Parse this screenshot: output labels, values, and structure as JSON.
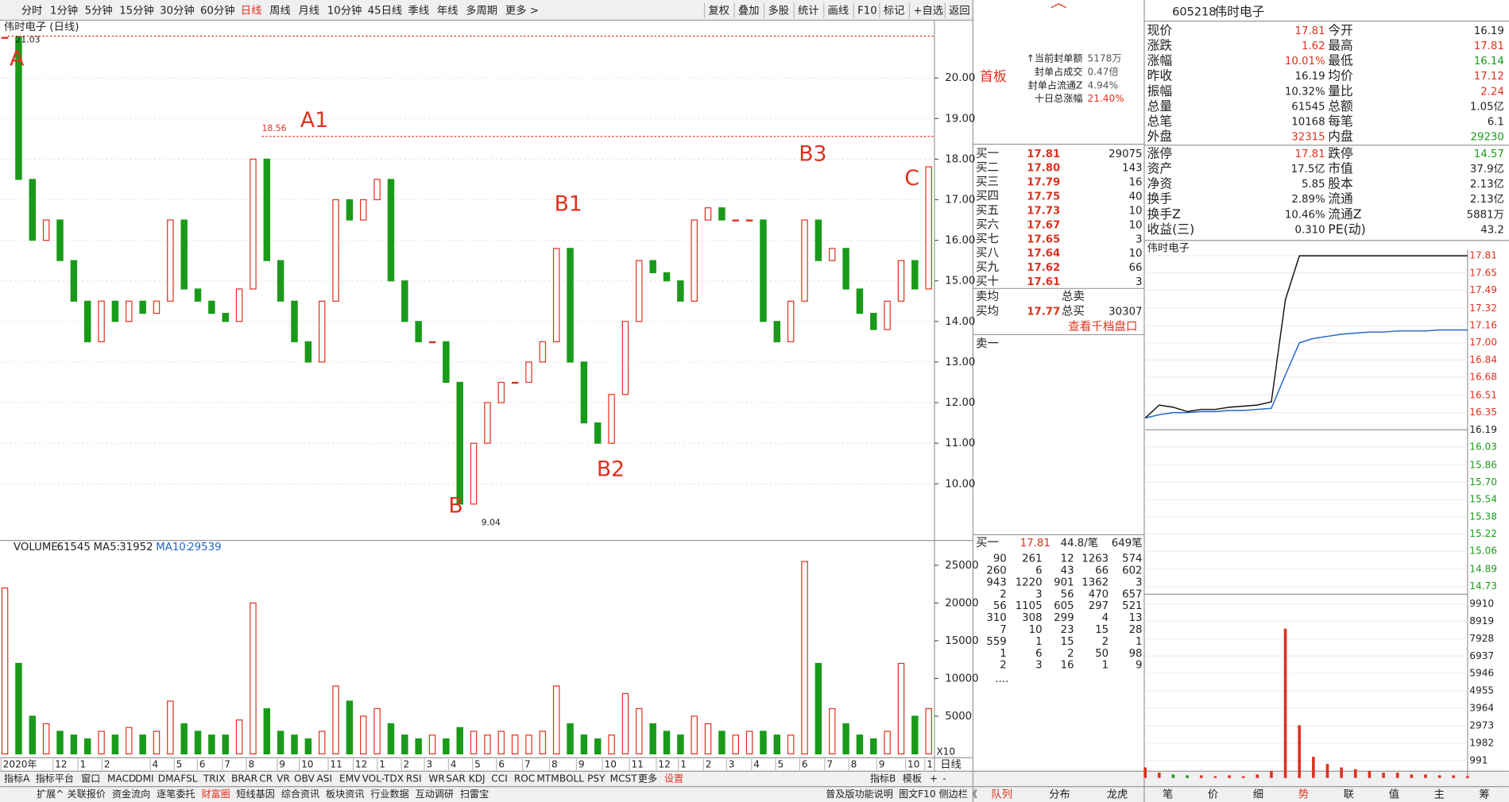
{
  "toolbar": {
    "left": [
      "分时",
      "1分钟",
      "5分钟",
      "15分钟",
      "30分钟",
      "60分钟",
      "日线",
      "周线",
      "月线",
      "10分钟",
      "45日线",
      "季线",
      "年线",
      "多周期",
      "更多 >"
    ],
    "active": 6,
    "right": [
      "复权",
      "叠加",
      "多股",
      "统计",
      "画线",
      "F10",
      "标记",
      "+自选",
      "返回"
    ]
  },
  "kline": {
    "title": "伟时电子 (日线)",
    "ylim": [
      8.77,
      21.21
    ],
    "yticks": [
      {
        "value": 20,
        "label": "20.00"
      },
      {
        "value": 19,
        "label": "19.00"
      },
      {
        "value": 18,
        "label": "18.00"
      },
      {
        "value": 17,
        "label": "17.00"
      },
      {
        "value": 16,
        "label": "16.00"
      },
      {
        "value": 15,
        "label": "15.00"
      },
      {
        "value": 14,
        "label": "14.00"
      },
      {
        "value": 13,
        "label": "13.00"
      },
      {
        "value": 12,
        "label": "12.00"
      },
      {
        "value": 11,
        "label": "11.00"
      },
      {
        "value": 10,
        "label": "10.00"
      }
    ],
    "closes": [
      21.0,
      17.5,
      16.0,
      16.5,
      15.5,
      14.5,
      13.5,
      14.5,
      14.0,
      14.5,
      14.2,
      14.5,
      16.5,
      14.8,
      14.5,
      14.2,
      14.0,
      14.8,
      18.0,
      15.5,
      14.5,
      13.5,
      13.0,
      14.5,
      17.0,
      16.5,
      17.0,
      17.5,
      15.0,
      14.0,
      13.5,
      13.5,
      12.5,
      9.5,
      11.0,
      12.0,
      12.5,
      12.5,
      13.0,
      13.5,
      15.8,
      13.0,
      11.5,
      11.0,
      12.2,
      14.0,
      15.5,
      15.2,
      15.0,
      14.5,
      16.5,
      16.8,
      16.5,
      16.5,
      16.5,
      14.0,
      13.5,
      14.5,
      16.5,
      15.5,
      15.8,
      14.8,
      14.2,
      13.8,
      14.5,
      15.5,
      14.8,
      17.81
    ],
    "high_mark": 21.03,
    "a1_mark": 18.56,
    "low_mark": 9.04,
    "wave_labels": [
      "A",
      "A1",
      "B1",
      "B",
      "B2",
      "B3",
      "C"
    ],
    "dates": [
      "2020年",
      "12",
      "1",
      "2",
      "4",
      "5",
      "6",
      "7",
      "8",
      "9",
      "10",
      "11",
      "12",
      "1",
      "2",
      "3",
      "4",
      "5",
      "6",
      "7",
      "8",
      "9",
      "10",
      "11",
      "12",
      "1",
      "2",
      "3",
      "4",
      "5",
      "6",
      "7",
      "8",
      "9",
      "10",
      "1"
    ],
    "period": "日线"
  },
  "volume": {
    "header": [
      {
        "name": "VOLUME:",
        "value": 61545
      },
      {
        "name": "MA5:",
        "value": 31952
      },
      {
        "name": "MA10:",
        "value": 29539
      }
    ],
    "ylim": [
      0,
      26000
    ],
    "yticks": [
      25000,
      20000,
      15000,
      10000,
      5000
    ],
    "unit": "X10",
    "values": [
      22000,
      12000,
      5000,
      4000,
      3000,
      2500,
      2000,
      3000,
      2500,
      3500,
      2500,
      3000,
      7000,
      4000,
      3000,
      2500,
      2500,
      4500,
      20000,
      6000,
      3000,
      2500,
      2000,
      3000,
      9000,
      7000,
      5000,
      6000,
      4000,
      2500,
      2000,
      2500,
      2000,
      3500,
      3000,
      2500,
      3000,
      2500,
      2500,
      3000,
      9000,
      4000,
      2500,
      2000,
      2500,
      8000,
      6000,
      4000,
      3000,
      2500,
      5000,
      4000,
      3000,
      2500,
      3000,
      3000,
      2500,
      2500,
      25500,
      12000,
      6000,
      4000,
      2500,
      2000,
      3000,
      12000,
      5000,
      6000
    ]
  },
  "seal": {
    "tag": "首板",
    "rows": [
      [
        "↑当前封单额",
        "5178万"
      ],
      [
        "封单占成交",
        "0.47倍"
      ],
      [
        "封单占流通Z",
        "4.94%"
      ],
      [
        "十日总涨幅",
        "21.40%"
      ]
    ]
  },
  "orderbook": {
    "rows": [
      [
        "买一",
        "17.81",
        "29075"
      ],
      [
        "买二",
        "17.80",
        "143"
      ],
      [
        "买三",
        "17.79",
        "16"
      ],
      [
        "买四",
        "17.75",
        "40"
      ],
      [
        "买五",
        "17.73",
        "10"
      ],
      [
        "买六",
        "17.67",
        "10"
      ],
      [
        "买七",
        "17.65",
        "3"
      ],
      [
        "买八",
        "17.64",
        "10"
      ],
      [
        "买九",
        "17.62",
        "66"
      ],
      [
        "买十",
        "17.61",
        "3"
      ]
    ],
    "sell_avg": "卖均",
    "sell_total": "总卖",
    "buy_avg": "买均",
    "buy_avg_price": "17.77",
    "buy_total": "总买",
    "buy_total_value": "30307",
    "more": "查看千档盘口",
    "sell1": "卖一"
  },
  "queue": {
    "label": "买一",
    "price": "17.81",
    "avg": "44.8/笔",
    "count": "649笔",
    "rows": [
      [
        "90",
        "261",
        "12",
        "1263",
        "574"
      ],
      [
        "260",
        "6",
        "43",
        "66",
        "602"
      ],
      [
        "943",
        "1220",
        "901",
        "1362",
        "3"
      ],
      [
        "2",
        "3",
        "56",
        "470",
        "657"
      ],
      [
        "56",
        "1105",
        "605",
        "297",
        "521"
      ],
      [
        "310",
        "308",
        "299",
        "4",
        "13"
      ],
      [
        "7",
        "10",
        "23",
        "15",
        "28"
      ],
      [
        "559",
        "1",
        "15",
        "2",
        "1"
      ],
      [
        "1",
        "6",
        "2",
        "50",
        "98"
      ],
      [
        "2",
        "3",
        "16",
        "1",
        "9"
      ]
    ],
    "more": "...."
  },
  "quote": {
    "code": "605218",
    "name": "伟时电子",
    "rows": [
      [
        "现价",
        "17.81",
        "今开",
        "16.19"
      ],
      [
        "涨跌",
        "1.62",
        "最高",
        "17.81"
      ],
      [
        "涨幅",
        "10.01%",
        "最低",
        "16.14"
      ],
      [
        "昨收",
        "16.19",
        "均价",
        "17.12"
      ],
      [
        "振幅",
        "10.32%",
        "量比",
        "2.24"
      ],
      [
        "总量",
        "61545",
        "总额",
        "1.05亿"
      ],
      [
        "总笔",
        "10168",
        "每笔",
        "6.1"
      ],
      [
        "外盘",
        "32315",
        "内盘",
        "29230"
      ]
    ],
    "colors": [
      [
        "#e0301e",
        "#222"
      ],
      [
        "#e0301e",
        "#e0301e"
      ],
      [
        "#e0301e",
        "#1a9a1a"
      ],
      [
        "#222",
        "#e0301e"
      ],
      [
        "#222",
        "#e0301e"
      ],
      [
        "#222",
        "#222"
      ],
      [
        "#222",
        "#222"
      ],
      [
        "#e0301e",
        "#1a9a1a"
      ]
    ],
    "rows2": [
      [
        "涨停",
        "17.81",
        "跌停",
        "14.57"
      ],
      [
        "资产",
        "17.5亿",
        "市值",
        "37.9亿"
      ],
      [
        "净资",
        "5.85",
        "股本",
        "2.13亿"
      ],
      [
        "换手",
        "2.89%",
        "流通",
        "2.13亿"
      ],
      [
        "换手Z",
        "10.46%",
        "流通Z",
        "5881万"
      ],
      [
        "收益(三)",
        "0.310",
        "PE(动)",
        "43.2"
      ]
    ],
    "colors2": [
      [
        "#e0301e",
        "#1a9a1a"
      ],
      [
        "#222",
        "#222"
      ],
      [
        "#222",
        "#222"
      ],
      [
        "#222",
        "#222"
      ],
      [
        "#222",
        "#222"
      ],
      [
        "#222",
        "#222"
      ]
    ]
  },
  "intraday": {
    "title": "伟时电子",
    "prev_close": 16.19,
    "ylim": [
      14.73,
      17.81
    ],
    "yticks": [
      17.81,
      17.65,
      17.49,
      17.32,
      17.16,
      {
        "value": 17,
        "label": "17.00"
      },
      16.84,
      16.68,
      16.51,
      16.35,
      16.19,
      16.03,
      15.86,
      {
        "value": 15.7,
        "label": "15.70"
      },
      15.54,
      15.38,
      15.22,
      15.06,
      14.89,
      14.73
    ],
    "price": [
      16.3,
      16.42,
      16.4,
      16.36,
      16.38,
      16.38,
      16.4,
      16.41,
      16.42,
      16.45,
      17.4,
      17.81,
      17.81,
      17.81,
      17.81,
      17.81,
      17.81,
      17.81,
      17.81,
      17.81,
      17.81,
      17.81,
      17.81,
      17.81
    ],
    "avg": [
      16.3,
      16.33,
      16.35,
      16.35,
      16.36,
      16.36,
      16.37,
      16.37,
      16.38,
      16.39,
      16.7,
      17.0,
      17.04,
      17.06,
      17.08,
      17.09,
      17.1,
      17.1,
      17.11,
      17.11,
      17.11,
      17.12,
      17.12,
      17.12
    ],
    "vlim": [
      0,
      9910
    ],
    "vticks": [
      9910,
      8919,
      7928,
      6937,
      5946,
      4955,
      3964,
      2973,
      1982,
      991
    ],
    "volume": [
      600,
      300,
      200,
      150,
      150,
      100,
      150,
      100,
      200,
      400,
      8500,
      3000,
      1200,
      800,
      600,
      500,
      400,
      300,
      300,
      200,
      200,
      150,
      150,
      100
    ]
  },
  "bottom": {
    "row1": [
      "指标A",
      "指标平台",
      "窗口",
      "MACD",
      "DMI",
      "DMA",
      "FSL",
      "TRIX",
      "BRAR",
      "CR",
      "VR",
      "OBV",
      "ASI",
      "EMV",
      "VOL-TDX",
      "RSI",
      "WR",
      "SAR",
      "KDJ",
      "CCI",
      "ROC",
      "MTM",
      "BOLL",
      "PSY",
      "MCST",
      "更多",
      "设置"
    ],
    "row1_right": [
      "指标B",
      "模板",
      "+",
      "-"
    ],
    "row2": [
      "扩展^",
      "关联报价",
      "资金流向",
      "逐笔委托",
      "财富圈",
      "短线基因",
      "综合资讯",
      "板块资讯",
      "行业数据",
      "互动调研",
      "扫雷宝"
    ],
    "row2_right": [
      "普及版功能说明",
      "图文F10",
      "侧边栏《"
    ],
    "mid_tabs": [
      "队列",
      "分布",
      "龙虎"
    ],
    "right_tabs": [
      "笔",
      "价",
      "细",
      "势",
      "联",
      "值",
      "主",
      "筹"
    ]
  }
}
